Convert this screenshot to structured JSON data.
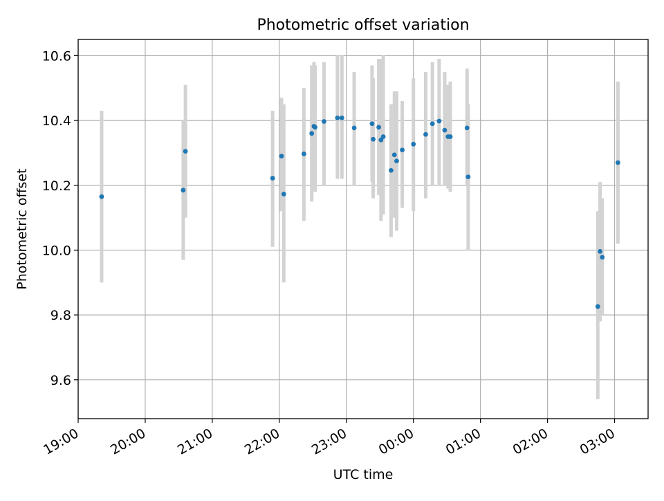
{
  "chart_data": {
    "type": "scatter",
    "title": "Photometric offset variation",
    "xlabel": "UTC time",
    "ylabel": "Photometric offset",
    "x_is_time": true,
    "xlim": [
      "19:00",
      "03:30"
    ],
    "ylim": [
      9.48,
      10.65
    ],
    "x_ticks": [
      "19:00",
      "20:00",
      "21:00",
      "22:00",
      "23:00",
      "00:00",
      "01:00",
      "02:00",
      "03:00"
    ],
    "y_ticks": [
      9.6,
      9.8,
      10.0,
      10.2,
      10.4,
      10.6
    ],
    "grid": true,
    "colors": {
      "point": "#1f77b4",
      "errorbar": "#d3d3d3",
      "grid": "#b0b0b0"
    },
    "series": [
      {
        "points": [
          {
            "t": "19:21",
            "y": 10.165,
            "lo": 9.9,
            "hi": 10.43
          },
          {
            "t": "20:34",
            "y": 10.185,
            "lo": 9.97,
            "hi": 10.4
          },
          {
            "t": "20:36",
            "y": 10.305,
            "lo": 10.1,
            "hi": 10.51
          },
          {
            "t": "21:54",
            "y": 10.222,
            "lo": 10.01,
            "hi": 10.43
          },
          {
            "t": "22:02",
            "y": 10.29,
            "lo": 10.12,
            "hi": 10.47
          },
          {
            "t": "22:04",
            "y": 10.173,
            "lo": 9.9,
            "hi": 10.45
          },
          {
            "t": "22:22",
            "y": 10.297,
            "lo": 10.09,
            "hi": 10.5
          },
          {
            "t": "22:29",
            "y": 10.36,
            "lo": 10.15,
            "hi": 10.57
          },
          {
            "t": "22:31",
            "y": 10.382,
            "lo": 10.19,
            "hi": 10.58
          },
          {
            "t": "22:32",
            "y": 10.379,
            "lo": 10.18,
            "hi": 10.57
          },
          {
            "t": "22:40",
            "y": 10.397,
            "lo": 10.2,
            "hi": 10.58
          },
          {
            "t": "22:52",
            "y": 10.408,
            "lo": 10.22,
            "hi": 10.6
          },
          {
            "t": "22:56",
            "y": 10.408,
            "lo": 10.22,
            "hi": 10.6
          },
          {
            "t": "23:07",
            "y": 10.377,
            "lo": 10.2,
            "hi": 10.55
          },
          {
            "t": "23:23",
            "y": 10.39,
            "lo": 10.21,
            "hi": 10.57
          },
          {
            "t": "23:24",
            "y": 10.342,
            "lo": 10.16,
            "hi": 10.53
          },
          {
            "t": "23:29",
            "y": 10.379,
            "lo": 10.17,
            "hi": 10.59
          },
          {
            "t": "23:31",
            "y": 10.34,
            "lo": 10.09,
            "hi": 10.59
          },
          {
            "t": "23:33",
            "y": 10.35,
            "lo": 10.11,
            "hi": 10.6
          },
          {
            "t": "23:40",
            "y": 10.246,
            "lo": 10.04,
            "hi": 10.45
          },
          {
            "t": "23:43",
            "y": 10.294,
            "lo": 10.1,
            "hi": 10.49
          },
          {
            "t": "23:45",
            "y": 10.275,
            "lo": 10.06,
            "hi": 10.49
          },
          {
            "t": "23:50",
            "y": 10.309,
            "lo": 10.13,
            "hi": 10.46
          },
          {
            "t": "00:00",
            "y": 10.327,
            "lo": 10.12,
            "hi": 10.53
          },
          {
            "t": "00:11",
            "y": 10.357,
            "lo": 10.16,
            "hi": 10.55
          },
          {
            "t": "00:17",
            "y": 10.39,
            "lo": 10.2,
            "hi": 10.58
          },
          {
            "t": "00:23",
            "y": 10.398,
            "lo": 10.2,
            "hi": 10.59
          },
          {
            "t": "00:28",
            "y": 10.37,
            "lo": 10.2,
            "hi": 10.55
          },
          {
            "t": "00:31",
            "y": 10.35,
            "lo": 10.19,
            "hi": 10.51
          },
          {
            "t": "00:33",
            "y": 10.35,
            "lo": 10.18,
            "hi": 10.52
          },
          {
            "t": "00:48",
            "y": 10.377,
            "lo": 10.2,
            "hi": 10.56
          },
          {
            "t": "00:49",
            "y": 10.226,
            "lo": 10.0,
            "hi": 10.45
          },
          {
            "t": "02:45",
            "y": 9.826,
            "lo": 9.54,
            "hi": 10.12
          },
          {
            "t": "02:47",
            "y": 9.996,
            "lo": 9.78,
            "hi": 10.21
          },
          {
            "t": "02:49",
            "y": 9.978,
            "lo": 9.8,
            "hi": 10.16
          },
          {
            "t": "03:03",
            "y": 10.27,
            "lo": 10.02,
            "hi": 10.52
          }
        ]
      }
    ]
  }
}
